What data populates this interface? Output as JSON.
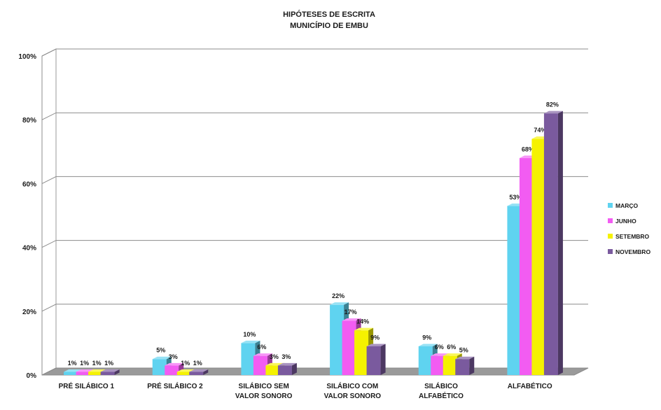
{
  "chart_data": {
    "type": "bar",
    "title": [
      "HIPÓTESES DE ESCRITA",
      "MUNICÍPIO DE EMBU"
    ],
    "xlabel": "",
    "ylabel": "",
    "ylim": [
      0,
      100
    ],
    "yticks": [
      "0%",
      "20%",
      "40%",
      "60%",
      "80%",
      "100%"
    ],
    "grid": true,
    "three_d": true,
    "legend_position": "right",
    "categories": [
      [
        "PRÉ SILÁBICO 1"
      ],
      [
        "PRÉ SILÁBICO 2"
      ],
      [
        "SILÁBICO SEM",
        "VALOR SONORO"
      ],
      [
        "SILÁBICO COM",
        "VALOR SONORO"
      ],
      [
        "SILÁBICO",
        "ALFABÉTICO"
      ],
      [
        "ALFABÉTICO"
      ]
    ],
    "series": [
      {
        "name": "MARÇO",
        "color": "#5fd3f0",
        "values": [
          1,
          5,
          10,
          22,
          9,
          53
        ],
        "labels": [
          "1%",
          "5%",
          "10%",
          "22%",
          "9%",
          "53%"
        ]
      },
      {
        "name": "JUNHO",
        "color": "#f25cf2",
        "values": [
          1,
          3,
          6,
          17,
          6,
          68
        ],
        "labels": [
          "1%",
          "3%",
          "6%",
          "17%",
          "6%",
          "68%"
        ]
      },
      {
        "name": "SETEMBRO",
        "color": "#f5f200",
        "values": [
          1,
          1,
          3,
          14,
          6,
          74
        ],
        "labels": [
          "1%",
          "1%",
          "3%",
          "14%",
          "6%",
          "74%"
        ]
      },
      {
        "name": "NOVEMBRO",
        "color": "#7a5a9e",
        "values": [
          1,
          1,
          3,
          9,
          5,
          82
        ],
        "labels": [
          "1%",
          "1%",
          "3%",
          "9%",
          "5%",
          "82%"
        ]
      }
    ]
  }
}
